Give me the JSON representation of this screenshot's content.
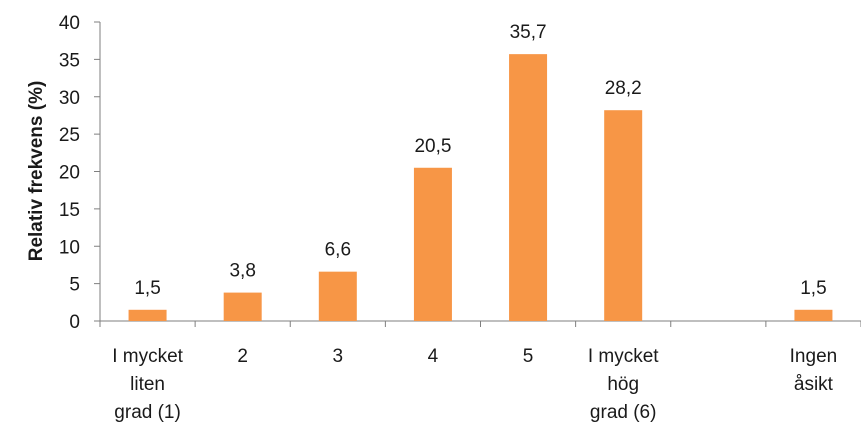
{
  "chart_data": {
    "type": "bar",
    "categories": [
      [
        "I mycket",
        "liten",
        "grad (1)"
      ],
      [
        "2"
      ],
      [
        "3"
      ],
      [
        "4"
      ],
      [
        "5"
      ],
      [
        "I mycket",
        "hög",
        "grad (6)"
      ],
      [],
      [
        "Ingen",
        "åsikt"
      ]
    ],
    "values": [
      1.5,
      3.8,
      6.6,
      20.5,
      35.7,
      28.2,
      null,
      1.5
    ],
    "data_labels": [
      "1,5",
      "3,8",
      "6,6",
      "20,5",
      "35,7",
      "28,2",
      "",
      "1,5"
    ],
    "title": "",
    "xlabel": "",
    "ylabel": "Relativ frekvens (%)",
    "ylim": [
      0,
      40
    ],
    "yticks": [
      0,
      5,
      10,
      15,
      20,
      25,
      30,
      35,
      40
    ],
    "grid": false,
    "bar_color": "#F79646",
    "axis_color": "#7f7f7f"
  }
}
